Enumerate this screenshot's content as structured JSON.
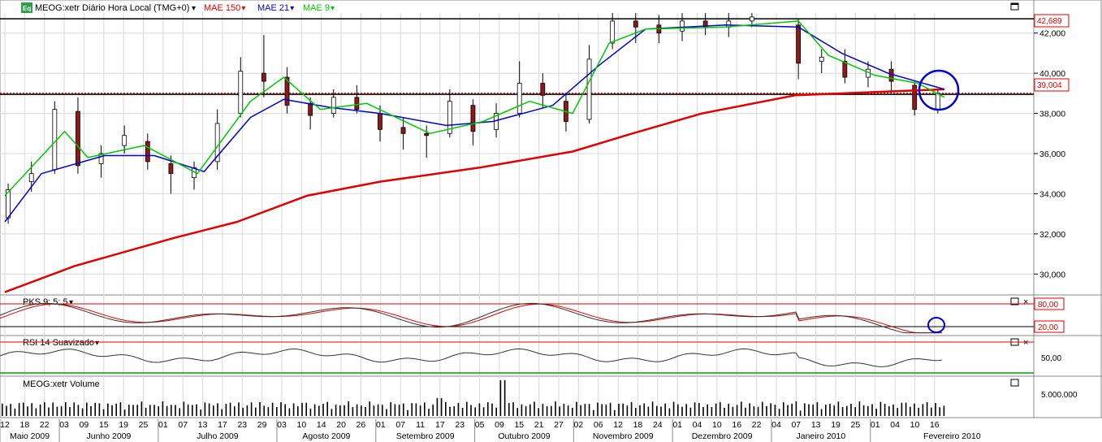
{
  "header": {
    "badge": "Eq",
    "title": "MEOG:xetr Diário Hora Local (TMG+0)",
    "indicators": [
      {
        "label": "MAE 150",
        "color": "#e00000"
      },
      {
        "label": "MAE 21",
        "color": "#0000d0"
      },
      {
        "label": "MAE 9",
        "color": "#00c800"
      }
    ]
  },
  "price_panel": {
    "y_ticks": [
      "42,000",
      "40,000",
      "38,000",
      "36,000",
      "34,000",
      "32,000",
      "30,000"
    ],
    "badge_high": "42,689",
    "badge_ma": "39,004",
    "colors": {
      "up": "#ffffff",
      "down": "#8b1a1a",
      "ma150": "#e00000",
      "ma21": "#0000d0",
      "ma9": "#00c800",
      "circle": "#0000d0"
    }
  },
  "pks_panel": {
    "title": "PKS 9; 5; 5",
    "levels": [
      "80,00",
      "20,00"
    ]
  },
  "rsi_panel": {
    "title": "RSI 14 Suavizado",
    "level": "50,00"
  },
  "volume_panel": {
    "title": "MEOG:xetr Volume",
    "tick": "5.000.000"
  },
  "x_axis": {
    "days": [
      "12",
      "18",
      "22",
      "03",
      "09",
      "15",
      "19",
      "25",
      "01",
      "07",
      "13",
      "17",
      "23",
      "29",
      "03",
      "10",
      "14",
      "20",
      "26",
      "01",
      "07",
      "11",
      "17",
      "23",
      "05",
      "09",
      "15",
      "21",
      "27",
      "02",
      "06",
      "12",
      "18",
      "24",
      "01",
      "04",
      "10",
      "16",
      "22",
      "04",
      "07",
      "13",
      "19",
      "25",
      "01",
      "04",
      "10",
      "16"
    ],
    "months": [
      "Maio 2009",
      "Junho 2009",
      "Julho 2009",
      "Agosto 2009",
      "Setembro 2009",
      "Outubro 2009",
      "Novembro 2009",
      "Dezembro 2009",
      "Janeiro 2010",
      "Fevereiro 2010"
    ]
  },
  "chart_data": {
    "type": "candlestick",
    "title": "MEOG:xetr Diário Hora Local (TMG+0)",
    "ylim": [
      29,
      43
    ],
    "x_start": "2009-05-11",
    "x_end": "2010-02-18",
    "horizontal_lines": [
      42.689,
      38.95,
      39.004
    ],
    "ma150": [
      [
        "2009-05-11",
        29.1
      ],
      [
        "2009-06-01",
        30.4
      ],
      [
        "2009-07-01",
        31.8
      ],
      [
        "2009-07-20",
        32.6
      ],
      [
        "2009-08-10",
        33.9
      ],
      [
        "2009-09-01",
        34.6
      ],
      [
        "2009-10-01",
        35.3
      ],
      [
        "2009-10-29",
        36.1
      ],
      [
        "2009-11-16",
        37.0
      ],
      [
        "2009-12-07",
        38.0
      ],
      [
        "2010-01-04",
        38.9
      ],
      [
        "2010-02-18",
        39.2
      ]
    ],
    "ma21": [
      [
        "2009-05-11",
        32.6
      ],
      [
        "2009-05-22",
        35.0
      ],
      [
        "2009-06-10",
        35.9
      ],
      [
        "2009-06-25",
        35.9
      ],
      [
        "2009-07-10",
        35.1
      ],
      [
        "2009-07-24",
        37.8
      ],
      [
        "2009-08-03",
        38.7
      ],
      [
        "2009-08-17",
        38.3
      ],
      [
        "2009-09-01",
        38.0
      ],
      [
        "2009-09-21",
        37.4
      ],
      [
        "2009-10-05",
        37.6
      ],
      [
        "2009-10-23",
        38.4
      ],
      [
        "2009-11-06",
        40.4
      ],
      [
        "2009-11-20",
        42.2
      ],
      [
        "2009-12-14",
        42.4
      ],
      [
        "2010-01-05",
        42.3
      ],
      [
        "2010-01-18",
        41.0
      ],
      [
        "2010-02-01",
        40.0
      ],
      [
        "2010-02-18",
        39.2
      ]
    ],
    "ma9": [
      [
        "2009-05-11",
        33.9
      ],
      [
        "2009-05-29",
        37.1
      ],
      [
        "2009-06-05",
        35.8
      ],
      [
        "2009-06-22",
        36.4
      ],
      [
        "2009-07-08",
        35.0
      ],
      [
        "2009-07-24",
        38.6
      ],
      [
        "2009-08-03",
        39.8
      ],
      [
        "2009-08-14",
        38.2
      ],
      [
        "2009-08-28",
        38.5
      ],
      [
        "2009-09-16",
        37.0
      ],
      [
        "2009-10-02",
        37.6
      ],
      [
        "2009-10-16",
        38.6
      ],
      [
        "2009-10-29",
        38.0
      ],
      [
        "2009-11-09",
        41.5
      ],
      [
        "2009-11-20",
        42.2
      ],
      [
        "2009-12-14",
        42.3
      ],
      [
        "2010-01-05",
        42.6
      ],
      [
        "2010-01-14",
        40.9
      ],
      [
        "2010-01-28",
        39.9
      ],
      [
        "2010-02-10",
        39.5
      ],
      [
        "2010-02-18",
        38.8
      ]
    ],
    "candles": [
      [
        "2009-05-12",
        32.8,
        34.2,
        32.5,
        34.5
      ],
      [
        "2009-05-19",
        34.6,
        35.0,
        34.1,
        35.6
      ],
      [
        "2009-05-26",
        35.2,
        38.2,
        35.0,
        38.6
      ],
      [
        "2009-06-02",
        38.1,
        35.4,
        35.0,
        38.8
      ],
      [
        "2009-06-09",
        35.5,
        36.0,
        34.8,
        36.4
      ],
      [
        "2009-06-16",
        36.4,
        36.9,
        36.0,
        37.4
      ],
      [
        "2009-06-23",
        36.6,
        35.6,
        35.2,
        37.0
      ],
      [
        "2009-06-30",
        35.5,
        35.0,
        34.0,
        35.9
      ],
      [
        "2009-07-07",
        34.8,
        35.3,
        34.2,
        35.6
      ],
      [
        "2009-07-14",
        35.6,
        37.5,
        35.2,
        38.2
      ],
      [
        "2009-07-21",
        38.0,
        40.1,
        37.8,
        40.8
      ],
      [
        "2009-07-28",
        40.0,
        39.6,
        38.8,
        41.9
      ],
      [
        "2009-08-04",
        39.8,
        38.4,
        38.0,
        40.3
      ],
      [
        "2009-08-11",
        38.5,
        37.9,
        37.2,
        38.8
      ],
      [
        "2009-08-18",
        38.0,
        38.8,
        37.8,
        39.2
      ],
      [
        "2009-08-25",
        38.8,
        38.2,
        38.0,
        39.4
      ],
      [
        "2009-09-01",
        38.0,
        37.2,
        36.6,
        38.4
      ],
      [
        "2009-09-08",
        37.3,
        37.0,
        36.2,
        37.8
      ],
      [
        "2009-09-15",
        37.0,
        36.9,
        35.8,
        37.4
      ],
      [
        "2009-09-22",
        37.0,
        38.6,
        36.8,
        39.2
      ],
      [
        "2009-09-29",
        38.4,
        37.1,
        36.4,
        38.7
      ],
      [
        "2009-10-06",
        37.2,
        38.0,
        36.8,
        38.5
      ],
      [
        "2009-10-13",
        38.0,
        39.5,
        37.8,
        40.6
      ],
      [
        "2009-10-20",
        39.5,
        38.9,
        38.3,
        40.0
      ],
      [
        "2009-10-27",
        38.6,
        37.6,
        37.1,
        39.0
      ],
      [
        "2009-11-03",
        37.7,
        40.7,
        37.5,
        41.4
      ],
      [
        "2009-11-10",
        41.5,
        42.6,
        41.2,
        43.2
      ],
      [
        "2009-11-17",
        42.6,
        42.3,
        41.5,
        43.2
      ],
      [
        "2009-11-24",
        42.4,
        42.0,
        41.5,
        42.9
      ],
      [
        "2009-12-01",
        42.1,
        42.6,
        41.6,
        43.1
      ],
      [
        "2009-12-08",
        42.6,
        42.3,
        41.9,
        43.0
      ],
      [
        "2009-12-15",
        42.3,
        42.6,
        41.8,
        43.0
      ],
      [
        "2009-12-22",
        42.6,
        42.8,
        42.3,
        43.2
      ],
      [
        "2010-01-05",
        42.4,
        40.5,
        39.7,
        42.7
      ],
      [
        "2010-01-12",
        40.6,
        40.8,
        40.0,
        41.2
      ],
      [
        "2010-01-19",
        40.6,
        39.8,
        39.5,
        41.2
      ],
      [
        "2010-01-26",
        39.8,
        40.2,
        39.3,
        40.6
      ],
      [
        "2010-02-02",
        40.2,
        39.6,
        39.0,
        40.6
      ],
      [
        "2010-02-09",
        39.4,
        38.2,
        37.9,
        39.6
      ],
      [
        "2010-02-16",
        38.2,
        39.0,
        38.0,
        39.2
      ]
    ],
    "pks_ylim": [
      0,
      100
    ],
    "pks_levels": [
      80,
      20
    ],
    "rsi_level": 50,
    "volume_tick": 5000000
  }
}
